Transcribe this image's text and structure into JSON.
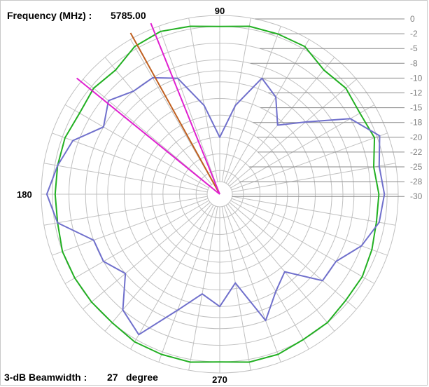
{
  "header": {
    "frequency_label": "Frequency (MHz) :",
    "frequency_value": "5785.00"
  },
  "footer": {
    "beamwidth_label": "3-dB Beamwidth :",
    "beamwidth_value": "27",
    "beamwidth_unit": "degree"
  },
  "colors": {
    "series_a": "#22b022",
    "series_b": "#7070cc",
    "marker_pink": "#e020d0",
    "marker_brown": "#c06020",
    "grid": "#c0c0c0",
    "db_label": "#808080"
  },
  "chart_data": {
    "type": "polar",
    "angle_labels": [
      "90",
      "180",
      "270"
    ],
    "radial_ticks": [
      "0",
      "-2",
      "-5",
      "-8",
      "-10",
      "-12",
      "-15",
      "-18",
      "-20",
      "-22",
      "-25",
      "-28",
      "-30"
    ],
    "radial_range": [
      -30,
      0
    ],
    "grid": true,
    "series": [
      {
        "color": "#22b022",
        "angles": [
          0,
          10,
          20,
          30,
          40,
          50,
          60,
          70,
          80,
          90,
          100,
          110,
          120,
          130,
          140,
          150,
          160,
          170,
          180,
          190,
          200,
          210,
          220,
          230,
          240,
          250,
          260,
          270,
          280,
          290,
          300,
          310,
          320,
          330,
          340,
          350
        ],
        "values": [
          -3.5,
          -4,
          -2.5,
          -3,
          -2.5,
          -3,
          -1.5,
          -1.5,
          -1.5,
          -2,
          -1.5,
          -1,
          -1.5,
          -3,
          -2.5,
          -3,
          -2.5,
          -2.5,
          -2.5,
          -2.5,
          -2,
          -2,
          -2,
          -2,
          -1.5,
          -1.5,
          -1.5,
          -2,
          -1.5,
          -1.5,
          -2,
          -2,
          -2.5,
          -2.5,
          -3,
          -3.5
        ]
      },
      {
        "color": "#7070cc",
        "angles": [
          0,
          10,
          20,
          30,
          40,
          50,
          60,
          70,
          80,
          90,
          100,
          110,
          120,
          130,
          140,
          150,
          160,
          170,
          180,
          190,
          200,
          210,
          220,
          230,
          240,
          250,
          260,
          270,
          280,
          290,
          300,
          310,
          320,
          330,
          340,
          350
        ],
        "values": [
          -2.5,
          -3,
          -1.5,
          -5,
          -12,
          -16,
          -12,
          -10,
          -16,
          -22,
          -16,
          -10,
          -8,
          -8,
          -6,
          -8,
          -4,
          -2.5,
          -1,
          -2.5,
          -8,
          -8,
          -10,
          -5,
          -3,
          -10,
          -14,
          -12,
          -16,
          -8,
          -12,
          -14,
          -8,
          -8,
          -5,
          -3
        ]
      }
    ],
    "markers": [
      {
        "angle": 119,
        "color": "#c06020"
      },
      {
        "angle": 112,
        "color": "#e020d0"
      },
      {
        "angle": 141,
        "color": "#e020d0"
      }
    ]
  }
}
